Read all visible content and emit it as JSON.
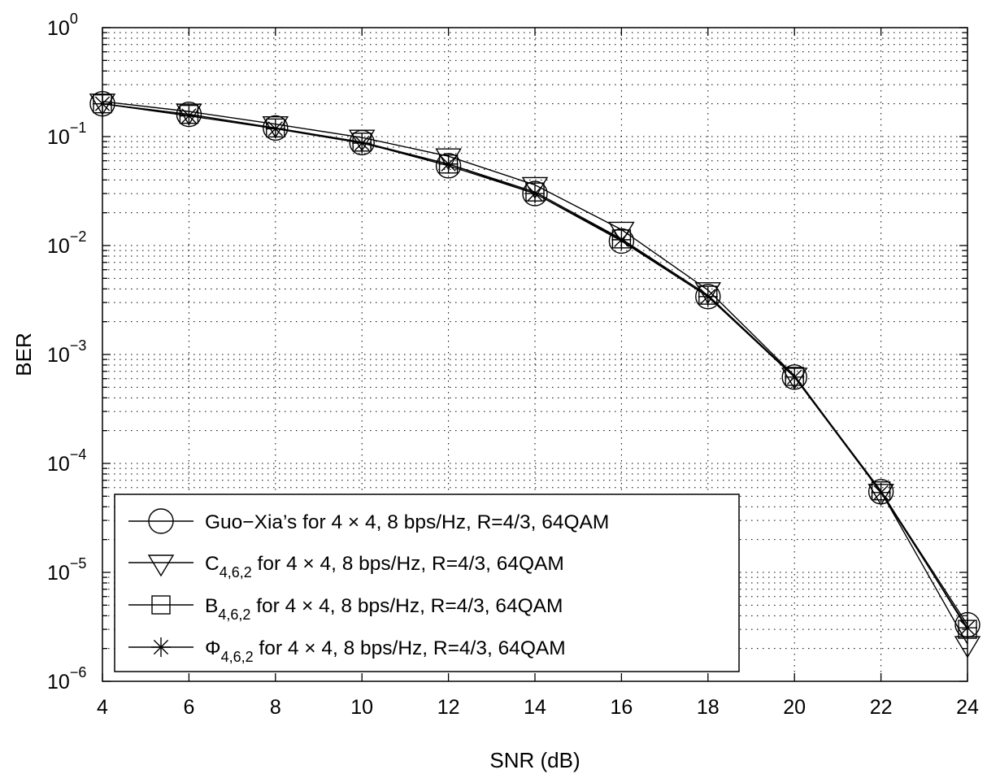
{
  "chart_data": {
    "type": "line",
    "title": "",
    "xlabel": "SNR (dB)",
    "ylabel": "BER",
    "x_scale": "linear",
    "y_scale": "log",
    "xlim": [
      4,
      24
    ],
    "ylim": [
      1e-06,
      1
    ],
    "grid": true,
    "legend_position": "bottom-left",
    "x": [
      4,
      6,
      8,
      10,
      12,
      14,
      16,
      18,
      20,
      22,
      24
    ],
    "x_ticks": [
      "4",
      "6",
      "8",
      "10",
      "12",
      "14",
      "16",
      "18",
      "20",
      "22",
      "24"
    ],
    "y_ticks": [
      {
        "base": "10",
        "exp": "0"
      },
      {
        "base": "10",
        "exp": "−1"
      },
      {
        "base": "10",
        "exp": "−2"
      },
      {
        "base": "10",
        "exp": "−3"
      },
      {
        "base": "10",
        "exp": "−4"
      },
      {
        "base": "10",
        "exp": "−5"
      },
      {
        "base": "10",
        "exp": "−6"
      }
    ],
    "series": [
      {
        "symbol": "",
        "subscript": "",
        "name": "Guo−Xia’s for  4 × 4, 8 bps/Hz, R=4/3, 64QAM",
        "marker": "circle",
        "values": [
          0.2,
          0.16,
          0.12,
          0.088,
          0.054,
          0.03,
          0.011,
          0.0034,
          0.00062,
          5.5e-05,
          3.3e-06
        ]
      },
      {
        "symbol": "C",
        "subscript": "4,6,2",
        "name": " for 4 × 4, 8 bps/Hz, R=4/3, 64QAM",
        "marker": "triangle-down",
        "values": [
          0.21,
          0.17,
          0.13,
          0.098,
          0.066,
          0.036,
          0.014,
          0.0039,
          0.00064,
          5.5e-05,
          2.2e-06
        ]
      },
      {
        "symbol": "B",
        "subscript": "4,6,2",
        "name": " for 4 × 4, 8 bps/Hz, R=4/3, 64QAM",
        "marker": "square",
        "values": [
          0.2,
          0.16,
          0.12,
          0.089,
          0.056,
          0.031,
          0.0115,
          0.0035,
          0.00063,
          5.6e-05,
          3e-06
        ]
      },
      {
        "symbol": "Φ",
        "subscript": "4,6,2",
        "name": " for 4 × 4, 8 bps/Hz, R=4/3, 64QAM",
        "marker": "asterisk",
        "values": [
          0.2,
          0.155,
          0.118,
          0.087,
          0.056,
          0.03,
          0.0113,
          0.0034,
          0.00062,
          5.4e-05,
          3.1e-06
        ]
      }
    ]
  }
}
